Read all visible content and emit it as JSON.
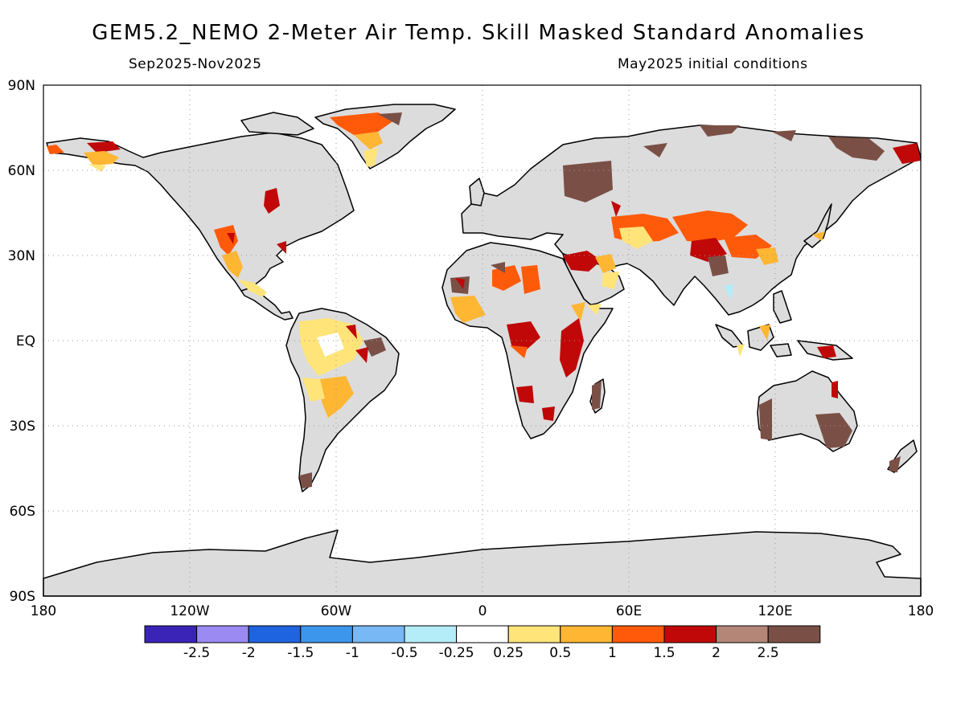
{
  "header": {
    "title": "GEM5.2_NEMO 2-Meter Air Temp. Skill Masked Standard Anomalies",
    "period": "Sep2025-Nov2025",
    "init": "May2025 initial conditions"
  },
  "axes": {
    "lat_labels": [
      "90N",
      "60N",
      "30N",
      "EQ",
      "30S",
      "60S",
      "90S"
    ],
    "lon_labels": [
      "180",
      "120W",
      "60W",
      "0",
      "60E",
      "120E",
      "180"
    ]
  },
  "legend": {
    "colors": [
      "#3a24b8",
      "#9a8af2",
      "#1e64e0",
      "#3c96ec",
      "#78b8f4",
      "#b4ecf8",
      "#ffffff",
      "#ffe47a",
      "#ffb632",
      "#ff5a0a",
      "#c00808",
      "#b48678",
      "#7a5046"
    ],
    "labels": [
      "-2.5",
      "-2",
      "-1.5",
      "-1",
      "-0.5",
      "-0.25",
      "0.25",
      "0.5",
      "1",
      "1.5",
      "2",
      "2.5"
    ]
  },
  "map": {
    "land_color": "#dcdcdc",
    "coast_color": "#000000",
    "grid_color": "#999999"
  }
}
